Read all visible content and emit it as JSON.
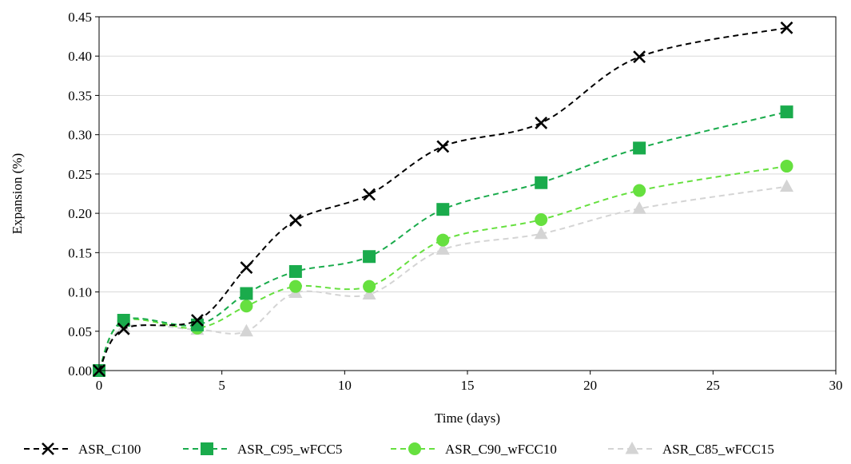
{
  "chart_data": {
    "type": "line",
    "xlabel": "Time (days)",
    "ylabel": "Expansion (%)",
    "xlim": [
      0,
      30
    ],
    "ylim": [
      0,
      0.45
    ],
    "xticks": [
      "0",
      "5",
      "10",
      "15",
      "20",
      "25",
      "30"
    ],
    "yticks": [
      "0.00",
      "0.05",
      "0.10",
      "0.15",
      "0.20",
      "0.25",
      "0.30",
      "0.35",
      "0.40",
      "0.45"
    ],
    "grid": "horizontal",
    "legend_position": "bottom",
    "series": [
      {
        "name": "ASR_C100",
        "color": "#000000",
        "marker": "x",
        "x": [
          0,
          1,
          4,
          6,
          8,
          11,
          14,
          18,
          22,
          28
        ],
        "y": [
          0.0,
          0.053,
          0.064,
          0.131,
          0.191,
          0.224,
          0.285,
          0.315,
          0.399,
          0.436
        ]
      },
      {
        "name": "ASR_C95_wFCC5",
        "color": "#1aab4c",
        "marker": "square",
        "x": [
          0,
          1,
          4,
          6,
          8,
          11,
          14,
          18,
          22,
          28
        ],
        "y": [
          0.0,
          0.064,
          0.058,
          0.098,
          0.126,
          0.145,
          0.205,
          0.239,
          0.283,
          0.329
        ]
      },
      {
        "name": "ASR_C90_wFCC10",
        "color": "#66e03f",
        "marker": "circle",
        "x": [
          0,
          1,
          4,
          6,
          8,
          11,
          14,
          18,
          22,
          28
        ],
        "y": [
          0.0,
          0.063,
          0.054,
          0.082,
          0.107,
          0.107,
          0.166,
          0.192,
          0.229,
          0.26
        ]
      },
      {
        "name": "ASR_C85_wFCC15",
        "color": "#d4d4d4",
        "marker": "triangle",
        "x": [
          0,
          1,
          4,
          6,
          8,
          11,
          14,
          18,
          22,
          28
        ],
        "y": [
          0.0,
          0.055,
          0.052,
          0.05,
          0.099,
          0.097,
          0.154,
          0.174,
          0.206,
          0.234
        ]
      }
    ]
  }
}
